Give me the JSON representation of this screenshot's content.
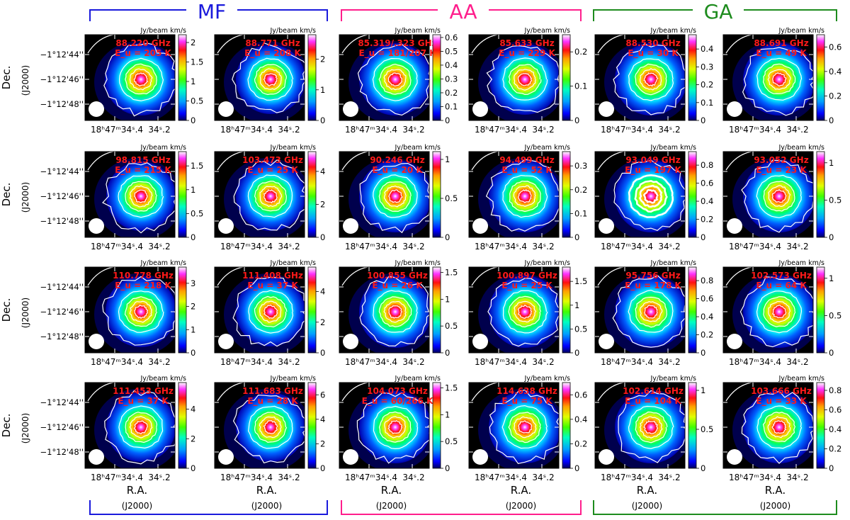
{
  "groups": [
    {
      "name": "MF",
      "color": "#1a1adc"
    },
    {
      "name": "AA",
      "color": "#ff1e8c"
    },
    {
      "name": "GA",
      "color": "#1e8c1e"
    }
  ],
  "labels": {
    "dec_main": "Dec.",
    "dec_sub": "(J2000)",
    "ra_main": "R.A.",
    "ra_sub": "(J2000)",
    "unit": "Jy/beam  km/s",
    "dec_ticks": [
      "−1°12'44''",
      "−1°12'46''",
      "−1°12'48''"
    ],
    "ra_tick1": "18ʰ47ᵐ34ˢ.4",
    "ra_tick2": "34ˢ.2"
  },
  "chart_data": {
    "type": "heatmap",
    "description_units": {
      "freq": "GHz",
      "eu": "K",
      "colorbar": "Jy/beam km/s"
    },
    "panels": [
      {
        "freq": "88.220 GHz",
        "eu": "E_u = 205 K",
        "colorbar_ticks": [
          "0",
          "0.5",
          "1",
          "1.5",
          "2"
        ],
        "vmax": 2.2,
        "bright": 0.55
      },
      {
        "freq": "88.771 GHz",
        "eu": "E_u = 208 K",
        "colorbar_ticks": [
          "0",
          "1",
          "2"
        ],
        "vmax": 2.8,
        "bright": 0.45
      },
      {
        "freq": "85.319/.323 GHz",
        "eu": "E_u = 181/207 K",
        "colorbar_ticks": [
          "0",
          "0.1",
          "0.2",
          "0.3",
          "0.4",
          "0.5",
          "0.6"
        ],
        "vmax": 0.62,
        "bright": 0.55
      },
      {
        "freq": "85.633 GHz",
        "eu": "E_u = 229 K",
        "colorbar_ticks": [
          "0",
          "0.1",
          "0.2"
        ],
        "vmax": 0.25,
        "bright": 0.5
      },
      {
        "freq": "88.530 GHz",
        "eu": "E_u = 30 K",
        "colorbar_ticks": [
          "0",
          "0.1",
          "0.2",
          "0.3",
          "0.4"
        ],
        "vmax": 0.48,
        "bright": 0.55
      },
      {
        "freq": "88.691 GHz",
        "eu": "E_u = 49 K",
        "colorbar_ticks": [
          "0",
          "0.2",
          "0.4",
          "0.6"
        ],
        "vmax": 0.7,
        "bright": 0.55
      },
      {
        "freq": "98.815 GHz",
        "eu": "E_u = 215 K",
        "colorbar_ticks": [
          "0",
          "0.5",
          "1",
          "1.5"
        ],
        "vmax": 1.8,
        "bright": 0.45
      },
      {
        "freq": "103.473 GHz",
        "eu": "E_u = 25 K",
        "colorbar_ticks": [
          "0",
          "2",
          "4"
        ],
        "vmax": 5.2,
        "bright": 0.45
      },
      {
        "freq": "90.246 GHz",
        "eu": "E_u = 20 K",
        "colorbar_ticks": [
          "0",
          "0.5",
          "1"
        ],
        "vmax": 1.1,
        "bright": 0.55
      },
      {
        "freq": "94.499 GHz",
        "eu": "E_u = 52 K",
        "colorbar_ticks": [
          "0",
          "0.1",
          "0.2",
          "0.3"
        ],
        "vmax": 0.36,
        "bright": 0.55
      },
      {
        "freq": "93.049 GHz",
        "eu": "E_u = 197 K",
        "colorbar_ticks": [
          "0",
          "0.2",
          "0.4",
          "0.6",
          "0.8"
        ],
        "vmax": 0.95,
        "bright": 0.55
      },
      {
        "freq": "93.052 GHz",
        "eu": "E_u = 23 K",
        "colorbar_ticks": [
          "0",
          "0.5",
          "1"
        ],
        "vmax": 1.15,
        "bright": 0.55
      },
      {
        "freq": "110.778 GHz",
        "eu": "E_u = 218 K",
        "colorbar_ticks": [
          "0",
          "1",
          "2",
          "3"
        ],
        "vmax": 3.7,
        "bright": 0.5
      },
      {
        "freq": "111.408 GHz",
        "eu": "E_u = 37 K",
        "colorbar_ticks": [
          "0",
          "2",
          "4"
        ],
        "vmax": 5.6,
        "bright": 0.45
      },
      {
        "freq": "100.855 GHz",
        "eu": "E_u = 26 K",
        "colorbar_ticks": [
          "0",
          "0.5",
          "1",
          "1.5"
        ],
        "vmax": 1.6,
        "bright": 0.55
      },
      {
        "freq": "100.897 GHz",
        "eu": "E_u = 25 K",
        "colorbar_ticks": [
          "0",
          "0.5",
          "1",
          "1.5"
        ],
        "vmax": 1.8,
        "bright": 0.55
      },
      {
        "freq": "95.756 GHz",
        "eu": "E_u = 178 K",
        "colorbar_ticks": [
          "0",
          "0.2",
          "0.4",
          "0.6",
          "0.8"
        ],
        "vmax": 0.95,
        "bright": 0.55
      },
      {
        "freq": "102.573 GHz",
        "eu": "E_u = 64 K",
        "colorbar_ticks": [
          "0",
          "0.5",
          "1"
        ],
        "vmax": 1.15,
        "bright": 0.55
      },
      {
        "freq": "111.453 GHz",
        "eu": "E_u = 37 K",
        "colorbar_ticks": [
          "0",
          "2",
          "4"
        ],
        "vmax": 5.8,
        "bright": 0.45
      },
      {
        "freq": "111.683 GHz",
        "eu": "E_u = 28 K",
        "colorbar_ticks": [
          "0",
          "2",
          "4",
          "6"
        ],
        "vmax": 7.0,
        "bright": 0.45
      },
      {
        "freq": "104.073 GHz",
        "eu": "E_u = 60/266 K",
        "colorbar_ticks": [
          "0",
          "0.5",
          "1",
          "1.5"
        ],
        "vmax": 1.6,
        "bright": 0.55
      },
      {
        "freq": "114.638 GHz",
        "eu": "E_u = 75 K",
        "colorbar_ticks": [
          "0",
          "0.2",
          "0.4",
          "0.6"
        ],
        "vmax": 0.7,
        "bright": 0.55
      },
      {
        "freq": "102.614 GHz",
        "eu": "E_u = 104 K",
        "colorbar_ticks": [
          "0",
          "0.5",
          "1"
        ],
        "vmax": 1.1,
        "bright": 0.55
      },
      {
        "freq": "103.666 GHz",
        "eu": "E_u = 33 K",
        "colorbar_ticks": [
          "0",
          "0.2",
          "0.4",
          "0.6",
          "0.8"
        ],
        "vmax": 0.88,
        "bright": 0.55
      }
    ]
  }
}
